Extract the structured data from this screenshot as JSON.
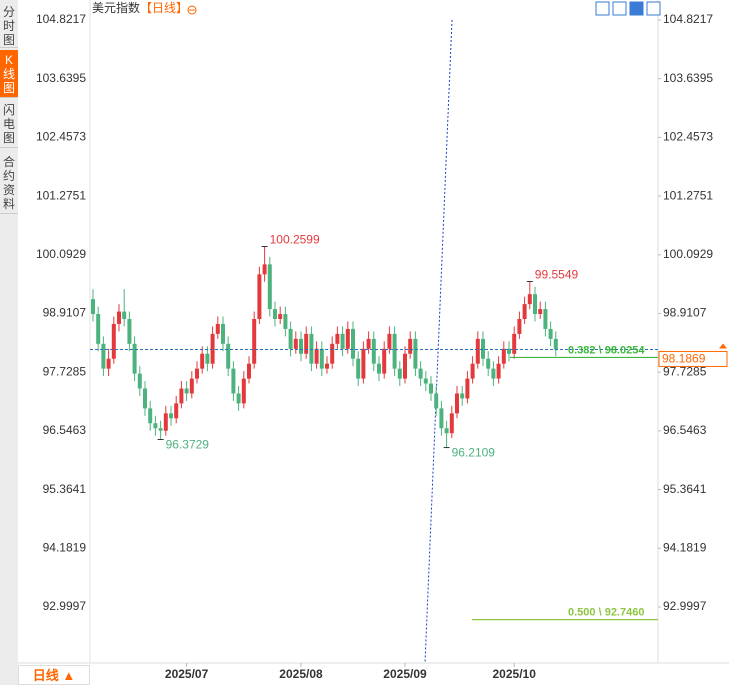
{
  "sidebar": {
    "tabs": [
      "分时图",
      "K线图",
      "闪电图",
      "合约资料"
    ]
  },
  "bottom_button": "日线 ▲",
  "chart_data": {
    "type": "candlestick",
    "title": "美元指数",
    "subtitle": "【日线】",
    "up_color": "#e4393c",
    "down_color": "#4db37e",
    "ylim": [
      91.872,
      104.9425
    ],
    "yticks": [
      104.8217,
      103.6395,
      102.4573,
      101.2751,
      100.0929,
      98.9107,
      97.7285,
      96.5463,
      95.3641,
      94.1819,
      92.9997
    ],
    "categories": [
      null,
      null,
      null,
      null,
      null,
      null,
      null,
      null,
      null,
      null,
      null,
      null,
      null,
      null,
      null,
      null,
      null,
      null,
      "2025/07",
      null,
      null,
      null,
      null,
      null,
      null,
      null,
      null,
      null,
      null,
      null,
      null,
      null,
      null,
      null,
      null,
      null,
      null,
      null,
      null,
      null,
      "2025/08",
      null,
      null,
      null,
      null,
      null,
      null,
      null,
      null,
      null,
      null,
      null,
      null,
      null,
      null,
      null,
      null,
      null,
      null,
      null,
      "2025/09",
      null,
      null,
      null,
      null,
      null,
      null,
      null,
      null,
      null,
      null,
      null,
      null,
      null,
      null,
      null,
      null,
      null,
      null,
      null,
      null,
      "2025/10",
      null,
      null,
      null,
      null,
      null,
      null,
      null,
      null
    ],
    "ohlc": [
      [
        99.2,
        99.4,
        98.75,
        98.9
      ],
      [
        98.9,
        99.05,
        98.15,
        98.3
      ],
      [
        98.3,
        98.45,
        97.65,
        97.8
      ],
      [
        97.8,
        98.2,
        97.65,
        98.0
      ],
      [
        98.0,
        98.85,
        97.9,
        98.7
      ],
      [
        98.7,
        99.1,
        98.55,
        98.95
      ],
      [
        98.95,
        99.4,
        98.65,
        98.8
      ],
      [
        98.8,
        98.95,
        98.15,
        98.3
      ],
      [
        98.3,
        98.45,
        97.55,
        97.7
      ],
      [
        97.7,
        97.85,
        97.25,
        97.4
      ],
      [
        97.4,
        97.55,
        96.85,
        97.0
      ],
      [
        97.0,
        97.15,
        96.55,
        96.7
      ],
      [
        96.7,
        96.85,
        96.45,
        96.6
      ],
      [
        96.6,
        96.75,
        96.3729,
        96.55
      ],
      [
        96.55,
        97.05,
        96.45,
        96.9
      ],
      [
        96.9,
        97.05,
        96.65,
        96.8
      ],
      [
        96.8,
        97.25,
        96.7,
        97.1
      ],
      [
        97.1,
        97.55,
        97.0,
        97.4
      ],
      [
        97.4,
        97.55,
        97.15,
        97.3
      ],
      [
        97.3,
        97.75,
        97.2,
        97.6
      ],
      [
        97.6,
        97.95,
        97.5,
        97.8
      ],
      [
        97.8,
        98.25,
        97.7,
        98.1
      ],
      [
        98.1,
        98.25,
        97.75,
        97.9
      ],
      [
        97.9,
        98.65,
        97.8,
        98.5
      ],
      [
        98.5,
        98.85,
        98.4,
        98.7
      ],
      [
        98.7,
        98.85,
        98.15,
        98.3
      ],
      [
        98.3,
        98.45,
        97.65,
        97.8
      ],
      [
        97.8,
        97.95,
        97.15,
        97.3
      ],
      [
        97.3,
        97.45,
        96.95,
        97.1
      ],
      [
        97.1,
        97.75,
        97.0,
        97.6
      ],
      [
        97.6,
        98.05,
        97.5,
        97.9
      ],
      [
        97.9,
        98.95,
        97.8,
        98.8
      ],
      [
        98.8,
        99.85,
        98.7,
        99.7
      ],
      [
        99.7,
        100.2599,
        99.55,
        99.9
      ],
      [
        99.9,
        100.05,
        98.85,
        99.0
      ],
      [
        99.0,
        99.15,
        98.65,
        98.8
      ],
      [
        98.8,
        99.05,
        98.7,
        98.9
      ],
      [
        98.9,
        99.05,
        98.45,
        98.6
      ],
      [
        98.6,
        98.75,
        98.05,
        98.2
      ],
      [
        98.2,
        98.55,
        98.1,
        98.4
      ],
      [
        98.4,
        98.55,
        97.95,
        98.1
      ],
      [
        98.1,
        98.65,
        98.0,
        98.5
      ],
      [
        98.5,
        98.65,
        97.75,
        97.9
      ],
      [
        97.9,
        98.35,
        97.8,
        98.2
      ],
      [
        98.2,
        98.35,
        97.65,
        97.8
      ],
      [
        97.8,
        98.05,
        97.7,
        97.9
      ],
      [
        97.9,
        98.45,
        97.8,
        98.3
      ],
      [
        98.3,
        98.65,
        98.2,
        98.5
      ],
      [
        98.5,
        98.65,
        98.05,
        98.2
      ],
      [
        98.2,
        98.75,
        98.1,
        98.6
      ],
      [
        98.6,
        98.75,
        97.85,
        98.0
      ],
      [
        98.0,
        98.15,
        97.45,
        97.6
      ],
      [
        97.6,
        98.35,
        97.5,
        98.2
      ],
      [
        98.2,
        98.55,
        98.1,
        98.4
      ],
      [
        98.4,
        98.55,
        97.75,
        97.9
      ],
      [
        97.9,
        98.05,
        97.55,
        97.7
      ],
      [
        97.7,
        98.35,
        97.6,
        98.2
      ],
      [
        98.2,
        98.65,
        98.1,
        98.5
      ],
      [
        98.5,
        98.65,
        97.65,
        97.8
      ],
      [
        97.8,
        97.95,
        97.45,
        97.6
      ],
      [
        97.6,
        98.25,
        97.5,
        98.1
      ],
      [
        98.1,
        98.55,
        98.0,
        98.4
      ],
      [
        98.4,
        98.55,
        97.65,
        97.8
      ],
      [
        97.8,
        97.95,
        97.45,
        97.6
      ],
      [
        97.6,
        97.75,
        97.35,
        97.5
      ],
      [
        97.5,
        97.65,
        97.15,
        97.3
      ],
      [
        97.3,
        97.45,
        96.85,
        97.0
      ],
      [
        97.0,
        97.15,
        96.45,
        96.6
      ],
      [
        96.6,
        96.75,
        96.2109,
        96.5
      ],
      [
        96.5,
        97.05,
        96.4,
        96.9
      ],
      [
        96.9,
        97.45,
        96.8,
        97.3
      ],
      [
        97.3,
        97.45,
        97.05,
        97.2
      ],
      [
        97.2,
        97.75,
        97.1,
        97.6
      ],
      [
        97.6,
        98.05,
        97.5,
        97.9
      ],
      [
        97.9,
        98.55,
        97.8,
        98.4
      ],
      [
        98.4,
        98.55,
        97.85,
        98.0
      ],
      [
        98.0,
        98.15,
        97.65,
        97.8
      ],
      [
        97.8,
        97.95,
        97.45,
        97.6
      ],
      [
        97.6,
        98.05,
        97.5,
        97.9
      ],
      [
        97.9,
        98.35,
        97.8,
        98.2
      ],
      [
        98.2,
        98.35,
        97.95,
        98.1
      ],
      [
        98.1,
        98.65,
        98.0,
        98.5
      ],
      [
        98.5,
        98.95,
        98.4,
        98.8
      ],
      [
        98.8,
        99.25,
        98.7,
        99.1
      ],
      [
        99.1,
        99.5549,
        99.0,
        99.3
      ],
      [
        99.3,
        99.45,
        98.75,
        98.9
      ],
      [
        98.9,
        99.15,
        98.8,
        99.0
      ],
      [
        99.0,
        99.15,
        98.45,
        98.6
      ],
      [
        98.6,
        98.75,
        98.25,
        98.4
      ],
      [
        98.4,
        98.55,
        98.05,
        98.1869
      ]
    ],
    "fib_levels": [
      {
        "label": "0.382 \\ 98.0254",
        "value": 98.0254,
        "color": "#3cb83c"
      },
      {
        "label": "0.500 \\ 92.7460",
        "value": 92.746,
        "color": "#8cc63f"
      }
    ]
  }
}
